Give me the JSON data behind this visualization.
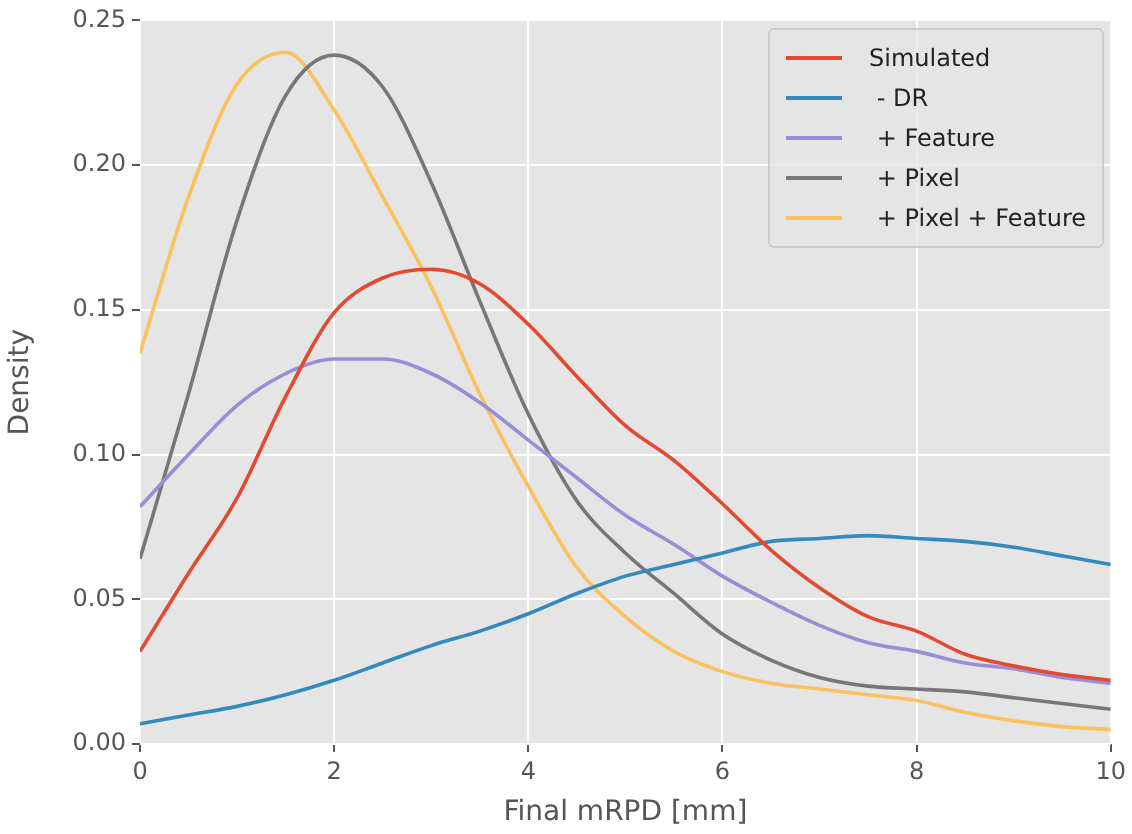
{
  "chart_data": {
    "type": "line",
    "xlabel": "Final mRPD [mm]",
    "ylabel": "Density",
    "x": [
      0,
      0.5,
      1,
      1.5,
      2,
      2.5,
      3,
      3.5,
      4,
      4.5,
      5,
      5.5,
      6,
      6.5,
      7,
      7.5,
      8,
      8.5,
      9,
      9.5,
      10
    ],
    "xlim": [
      0,
      10
    ],
    "xticks": [
      0,
      2,
      4,
      6,
      8,
      10
    ],
    "ylim": [
      0,
      0.25
    ],
    "yticks": [
      {
        "value": 0,
        "label": "0.00"
      },
      {
        "value": 0.05,
        "label": "0.05"
      },
      {
        "value": 0.1,
        "label": "0.10"
      },
      {
        "value": 0.15,
        "label": "0.15"
      },
      {
        "value": 0.2,
        "label": "0.20"
      },
      {
        "value": 0.25,
        "label": "0.25"
      }
    ],
    "grid": true,
    "legend": "top right",
    "marker": "none",
    "line_style": "solid",
    "series": [
      {
        "name": "Simulated",
        "color": "#e24a33",
        "values": [
          0.032,
          0.059,
          0.085,
          0.12,
          0.149,
          0.161,
          0.164,
          0.159,
          0.145,
          0.127,
          0.11,
          0.098,
          0.083,
          0.067,
          0.054,
          0.044,
          0.039,
          0.031,
          0.027,
          0.024,
          0.022
        ]
      },
      {
        "name": " - DR",
        "color": "#348abd",
        "values": [
          0.007,
          0.01,
          0.013,
          0.017,
          0.022,
          0.028,
          0.034,
          0.039,
          0.045,
          0.052,
          0.058,
          0.062,
          0.066,
          0.07,
          0.071,
          0.072,
          0.071,
          0.07,
          0.068,
          0.065,
          0.062
        ]
      },
      {
        "name": " + Feature",
        "color": "#988ed5",
        "values": [
          0.082,
          0.1,
          0.117,
          0.128,
          0.133,
          0.133,
          0.128,
          0.118,
          0.105,
          0.092,
          0.079,
          0.069,
          0.058,
          0.049,
          0.041,
          0.035,
          0.032,
          0.028,
          0.026,
          0.023,
          0.021
        ]
      },
      {
        "name": " + Pixel",
        "color": "#777777",
        "values": [
          0.064,
          0.121,
          0.181,
          0.224,
          0.238,
          0.227,
          0.194,
          0.153,
          0.114,
          0.084,
          0.066,
          0.052,
          0.038,
          0.029,
          0.023,
          0.02,
          0.019,
          0.018,
          0.016,
          0.014,
          0.012
        ]
      },
      {
        "name": " + Pixel + Feature",
        "color": "#fbc15e",
        "values": [
          0.135,
          0.189,
          0.228,
          0.239,
          0.219,
          0.189,
          0.158,
          0.121,
          0.089,
          0.061,
          0.044,
          0.032,
          0.025,
          0.021,
          0.019,
          0.017,
          0.015,
          0.011,
          0.008,
          0.006,
          0.005
        ]
      }
    ]
  }
}
